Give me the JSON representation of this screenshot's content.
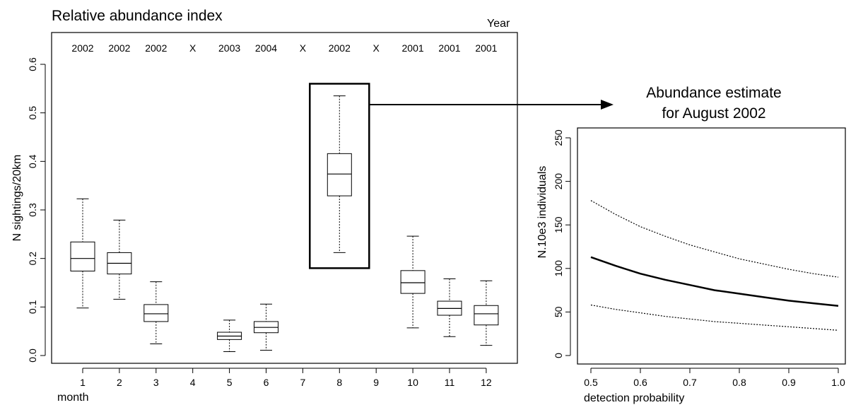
{
  "chart_data": [
    {
      "type": "boxplot",
      "title": "Relative abundance index",
      "xlabel": "month",
      "ylabel": "N sightings/20km",
      "top_axis_label": "Year",
      "ylim": [
        0,
        0.6
      ],
      "yticks": [
        "0.0",
        "0.1",
        "0.2",
        "0.3",
        "0.4",
        "0.5",
        "0.6"
      ],
      "categories": [
        "1",
        "2",
        "3",
        "4",
        "5",
        "6",
        "7",
        "8",
        "9",
        "10",
        "11",
        "12"
      ],
      "year_labels": [
        "2002",
        "2002",
        "2002",
        "X",
        "2003",
        "2004",
        "X",
        "2002",
        "X",
        "2001",
        "2001",
        "2001"
      ],
      "boxes": [
        {
          "month": 1,
          "min": 0.098,
          "q1": 0.174,
          "median": 0.2,
          "q3": 0.234,
          "max": 0.323
        },
        {
          "month": 2,
          "min": 0.116,
          "q1": 0.168,
          "median": 0.19,
          "q3": 0.212,
          "max": 0.279
        },
        {
          "month": 3,
          "min": 0.024,
          "q1": 0.07,
          "median": 0.086,
          "q3": 0.105,
          "max": 0.152
        },
        {
          "month": 5,
          "min": 0.008,
          "q1": 0.033,
          "median": 0.04,
          "q3": 0.048,
          "max": 0.073
        },
        {
          "month": 6,
          "min": 0.011,
          "q1": 0.047,
          "median": 0.058,
          "q3": 0.07,
          "max": 0.106
        },
        {
          "month": 8,
          "min": 0.212,
          "q1": 0.329,
          "median": 0.374,
          "q3": 0.416,
          "max": 0.535
        },
        {
          "month": 10,
          "min": 0.057,
          "q1": 0.128,
          "median": 0.15,
          "q3": 0.175,
          "max": 0.246
        },
        {
          "month": 11,
          "min": 0.039,
          "q1": 0.083,
          "median": 0.097,
          "q3": 0.112,
          "max": 0.158
        },
        {
          "month": 12,
          "min": 0.021,
          "q1": 0.063,
          "median": 0.086,
          "q3": 0.103,
          "max": 0.154
        }
      ],
      "highlight": {
        "month": 8,
        "y_range": [
          0.18,
          0.56
        ]
      }
    },
    {
      "type": "line",
      "title": "Abundance estimate\nfor August 2002",
      "xlabel": "detection probability",
      "ylabel": "N.10e3 individuals",
      "xlim": [
        0.5,
        1.0
      ],
      "ylim": [
        0,
        250
      ],
      "xticks": [
        "0.5",
        "0.6",
        "0.7",
        "0.8",
        "0.9",
        "1.0"
      ],
      "yticks": [
        "0",
        "50",
        "100",
        "150",
        "200",
        "250"
      ],
      "x": [
        0.5,
        0.55,
        0.6,
        0.65,
        0.7,
        0.75,
        0.8,
        0.85,
        0.9,
        0.95,
        1.0
      ],
      "series": [
        {
          "style": "solid",
          "values": [
            113,
            103,
            94,
            87,
            81,
            75,
            71,
            67,
            63,
            60,
            57
          ]
        },
        {
          "style": "dotted",
          "values": [
            178,
            162,
            148,
            137,
            127,
            119,
            111,
            105,
            99,
            94,
            90
          ]
        },
        {
          "style": "dotted",
          "values": [
            58,
            53,
            49,
            45,
            42,
            39,
            37,
            35,
            33,
            31,
            29
          ]
        }
      ]
    }
  ]
}
